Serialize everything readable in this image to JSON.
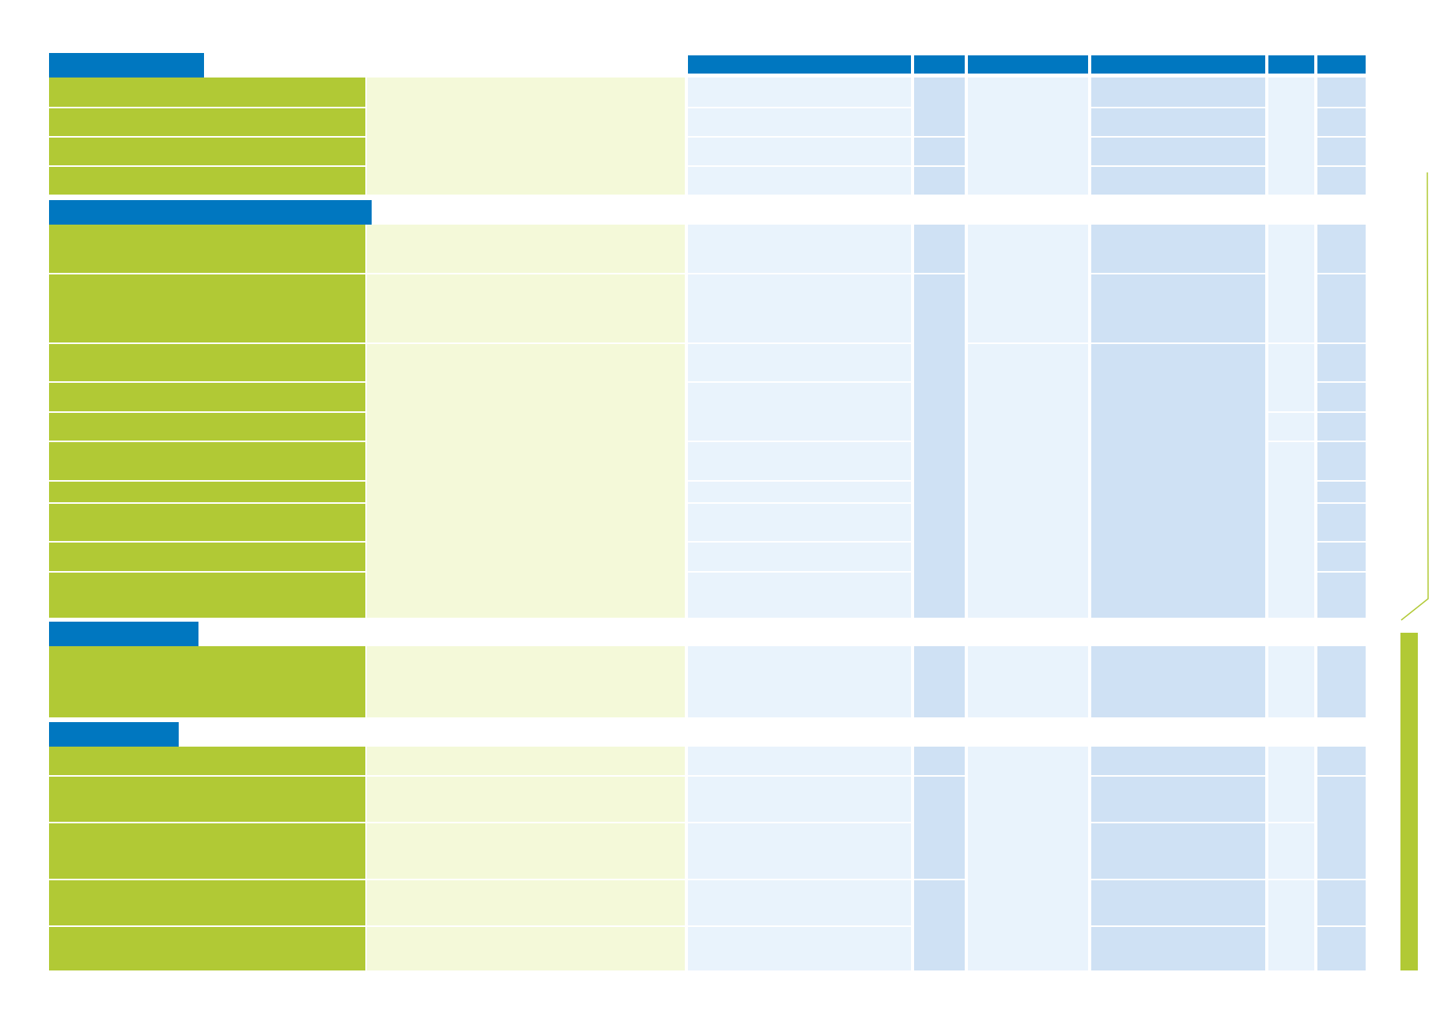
{
  "page": {
    "background": "#ffffff"
  },
  "colors": {
    "section_header": "#0077c0",
    "label_column": "#b1c935",
    "light_green": "#f4f9d9",
    "light_blue": "#e9f3fc",
    "mid_blue": "#cfe1f4",
    "accent_line": "#b1c935"
  },
  "table": {
    "column_headers": [
      "",
      "",
      "",
      "",
      "",
      ""
    ],
    "sections": [
      {
        "title": "",
        "row_count": 4
      },
      {
        "title": "",
        "row_count": 10
      },
      {
        "title": "",
        "row_count": 1
      },
      {
        "title": "",
        "row_count": 5
      }
    ]
  },
  "side_tab": {
    "label": ""
  }
}
